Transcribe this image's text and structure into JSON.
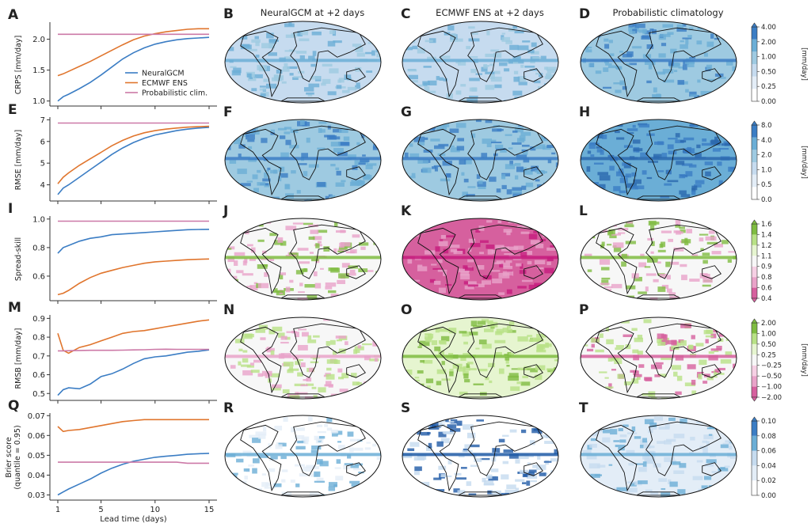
{
  "column_titles": [
    "NeuralGCM at +2 days",
    "ECMWF ENS at +2 days",
    "Probabilistic climatology"
  ],
  "map_panel_letters": [
    [
      "B",
      "C",
      "D"
    ],
    [
      "F",
      "G",
      "H"
    ],
    [
      "J",
      "K",
      "L"
    ],
    [
      "N",
      "O",
      "P"
    ],
    [
      "R",
      "S",
      "T"
    ]
  ],
  "colors": {
    "NeuralGCM": "#3b7dc4",
    "ECMWF ENS": "#e0752d",
    "Probabilistic clim.": "#cc79a7"
  },
  "chart_data": [
    {
      "type": "line",
      "letter": "A",
      "ylabel": "CRPS [mm/day]",
      "ylim": [
        0.97,
        2.25
      ],
      "yticks": [
        "1.0",
        "1.5",
        "2.0"
      ],
      "ytick_values": [
        1.0,
        1.5,
        2.0
      ],
      "xlim": [
        0.4,
        15.6
      ],
      "xticks": [
        1,
        5,
        10,
        15
      ],
      "legend": "lower-right",
      "x": [
        1,
        1.5,
        2,
        3,
        4,
        5,
        6,
        7,
        8,
        9,
        10,
        11,
        12,
        13,
        14,
        15
      ],
      "series": [
        {
          "name": "NeuralGCM",
          "values": [
            1.0,
            1.07,
            1.11,
            1.2,
            1.3,
            1.42,
            1.55,
            1.68,
            1.78,
            1.86,
            1.92,
            1.96,
            1.99,
            2.01,
            2.02,
            2.03
          ]
        },
        {
          "name": "ECMWF ENS",
          "values": [
            1.41,
            1.44,
            1.48,
            1.56,
            1.64,
            1.73,
            1.82,
            1.91,
            1.99,
            2.05,
            2.09,
            2.12,
            2.14,
            2.16,
            2.17,
            2.17
          ]
        },
        {
          "name": "Probabilistic clim.",
          "values": [
            2.08,
            2.08,
            2.08,
            2.08,
            2.08,
            2.08,
            2.08,
            2.08,
            2.08,
            2.08,
            2.08,
            2.08,
            2.08,
            2.08,
            2.08,
            2.08
          ]
        }
      ]
    },
    {
      "type": "line",
      "letter": "E",
      "ylabel": "RMSE [mm/day]",
      "ylim": [
        3.4,
        7.05
      ],
      "yticks": [
        "4",
        "5",
        "6",
        "7"
      ],
      "ytick_values": [
        4,
        5,
        6,
        7
      ],
      "xlim": [
        0.4,
        15.6
      ],
      "xticks": [
        1,
        5,
        10,
        15
      ],
      "x": [
        1,
        1.5,
        2,
        3,
        4,
        5,
        6,
        7,
        8,
        9,
        10,
        11,
        12,
        13,
        14,
        15
      ],
      "series": [
        {
          "name": "NeuralGCM",
          "values": [
            3.55,
            3.85,
            4.0,
            4.35,
            4.7,
            5.05,
            5.4,
            5.7,
            5.95,
            6.15,
            6.3,
            6.4,
            6.5,
            6.57,
            6.62,
            6.65
          ]
        },
        {
          "name": "ECMWF ENS",
          "values": [
            4.05,
            4.35,
            4.55,
            4.9,
            5.2,
            5.5,
            5.8,
            6.05,
            6.25,
            6.4,
            6.5,
            6.57,
            6.62,
            6.66,
            6.68,
            6.7
          ]
        },
        {
          "name": "Probabilistic clim.",
          "values": [
            6.85,
            6.85,
            6.85,
            6.85,
            6.85,
            6.85,
            6.85,
            6.85,
            6.85,
            6.85,
            6.85,
            6.85,
            6.85,
            6.85,
            6.85,
            6.85
          ]
        }
      ]
    },
    {
      "type": "line",
      "letter": "I",
      "ylabel": "Spread-skill",
      "ylim": [
        0.45,
        1.01
      ],
      "yticks": [
        "0.6",
        "0.8",
        "1.0"
      ],
      "ytick_values": [
        0.6,
        0.8,
        1.0
      ],
      "xlim": [
        0.4,
        15.6
      ],
      "xticks": [
        1,
        5,
        10,
        15
      ],
      "x": [
        1,
        1.5,
        2,
        3,
        4,
        5,
        6,
        7,
        8,
        9,
        10,
        11,
        12,
        13,
        14,
        15
      ],
      "series": [
        {
          "name": "NeuralGCM",
          "values": [
            0.76,
            0.8,
            0.815,
            0.845,
            0.865,
            0.875,
            0.89,
            0.895,
            0.9,
            0.905,
            0.91,
            0.915,
            0.92,
            0.925,
            0.927,
            0.928
          ]
        },
        {
          "name": "ECMWF ENS",
          "values": [
            0.47,
            0.48,
            0.5,
            0.55,
            0.59,
            0.62,
            0.64,
            0.66,
            0.675,
            0.69,
            0.7,
            0.705,
            0.71,
            0.715,
            0.718,
            0.72
          ]
        },
        {
          "name": "Probabilistic clim.",
          "values": [
            0.985,
            0.985,
            0.985,
            0.985,
            0.985,
            0.985,
            0.985,
            0.985,
            0.985,
            0.985,
            0.985,
            0.985,
            0.985,
            0.985,
            0.985,
            0.985
          ]
        }
      ]
    },
    {
      "type": "line",
      "letter": "M",
      "ylabel": "RMSB [mm/day]",
      "ylim": [
        0.48,
        0.91
      ],
      "yticks": [
        "0.5",
        "0.6",
        "0.7",
        "0.8",
        "0.9"
      ],
      "ytick_values": [
        0.5,
        0.6,
        0.7,
        0.8,
        0.9
      ],
      "xlim": [
        0.4,
        15.6
      ],
      "xticks": [
        1,
        5,
        10,
        15
      ],
      "x": [
        1,
        1.5,
        2,
        3,
        4,
        5,
        6,
        7,
        8,
        9,
        10,
        11,
        12,
        13,
        14,
        15
      ],
      "series": [
        {
          "name": "NeuralGCM",
          "values": [
            0.49,
            0.52,
            0.53,
            0.525,
            0.55,
            0.59,
            0.605,
            0.63,
            0.66,
            0.685,
            0.695,
            0.7,
            0.71,
            0.72,
            0.725,
            0.732
          ]
        },
        {
          "name": "ECMWF ENS",
          "values": [
            0.82,
            0.73,
            0.715,
            0.745,
            0.76,
            0.78,
            0.8,
            0.82,
            0.83,
            0.835,
            0.845,
            0.855,
            0.865,
            0.875,
            0.885,
            0.892
          ]
        },
        {
          "name": "Probabilistic clim.",
          "values": [
            0.727,
            0.727,
            0.728,
            0.729,
            0.73,
            0.73,
            0.73,
            0.731,
            0.732,
            0.733,
            0.735,
            0.736,
            0.735,
            0.735,
            0.735,
            0.735
          ]
        }
      ]
    },
    {
      "type": "line",
      "letter": "Q",
      "ylabel": "Brier score\n(quantile = 0.95)",
      "ylim": [
        0.029,
        0.0705
      ],
      "yticks": [
        "0.03",
        "0.04",
        "0.05",
        "0.06",
        "0.07"
      ],
      "ytick_values": [
        0.03,
        0.04,
        0.05,
        0.06,
        0.07
      ],
      "xlim": [
        0.4,
        15.6
      ],
      "xticks": [
        1,
        5,
        10,
        15
      ],
      "xlabel": "Lead time (days)",
      "x": [
        1,
        1.5,
        2,
        3,
        4,
        5,
        6,
        7,
        8,
        9,
        10,
        11,
        12,
        13,
        14,
        15
      ],
      "series": [
        {
          "name": "NeuralGCM",
          "values": [
            0.03,
            0.0315,
            0.033,
            0.0355,
            0.038,
            0.041,
            0.0435,
            0.0455,
            0.047,
            0.048,
            0.049,
            0.0495,
            0.05,
            0.0505,
            0.0508,
            0.051
          ]
        },
        {
          "name": "ECMWF ENS",
          "values": [
            0.0645,
            0.062,
            0.0625,
            0.063,
            0.064,
            0.065,
            0.066,
            0.067,
            0.0675,
            0.068,
            0.068,
            0.068,
            0.068,
            0.068,
            0.068,
            0.068
          ]
        },
        {
          "name": "Probabilistic clim.",
          "values": [
            0.0465,
            0.0465,
            0.0465,
            0.0465,
            0.0465,
            0.0465,
            0.0465,
            0.0465,
            0.0465,
            0.0465,
            0.0465,
            0.0465,
            0.0465,
            0.046,
            0.046,
            0.046
          ]
        }
      ]
    }
  ],
  "colorbars": [
    {
      "labels": [
        "0.00",
        "0.25",
        "0.50",
        "1.00",
        "2.00",
        "4.00"
      ],
      "unit": "[mm/day]",
      "colors": [
        "#ffffff",
        "#e3edf7",
        "#c6dbef",
        "#9ecae1",
        "#6baed6",
        "#3b7dc4"
      ],
      "extend": "max"
    },
    {
      "labels": [
        "0.0",
        "0.5",
        "1.0",
        "2.0",
        "4.0",
        "8.0"
      ],
      "unit": "[mm/day]",
      "colors": [
        "#ffffff",
        "#e3edf7",
        "#c6dbef",
        "#9ecae1",
        "#6baed6",
        "#3b7dc4"
      ],
      "extend": "max"
    },
    {
      "labels": [
        "0.4",
        "0.6",
        "0.8",
        "0.9",
        "1.1",
        "1.2",
        "1.4",
        "1.6"
      ],
      "unit": "",
      "colors": [
        "#d6609e",
        "#e9a3c9",
        "#f6d0e4",
        "#f7f7f7",
        "#e6f5d0",
        "#b8e186",
        "#7fbc41"
      ],
      "extend": "both"
    },
    {
      "labels": [
        "−2.00",
        "−1.00",
        "−0.50",
        "−0.25",
        "0.25",
        "0.50",
        "1.00",
        "2.00"
      ],
      "unit": "[mm/day]",
      "colors": [
        "#d6609e",
        "#e9a3c9",
        "#f6d0e4",
        "#f7f7f7",
        "#e6f5d0",
        "#b8e186",
        "#7fbc41"
      ],
      "extend": "both"
    },
    {
      "labels": [
        "0.00",
        "0.02",
        "0.04",
        "0.06",
        "0.08",
        "0.10"
      ],
      "unit": "",
      "colors": [
        "#ffffff",
        "#e3edf7",
        "#c6dbef",
        "#6baed6",
        "#3b7dc4"
      ],
      "extend": "max"
    }
  ]
}
